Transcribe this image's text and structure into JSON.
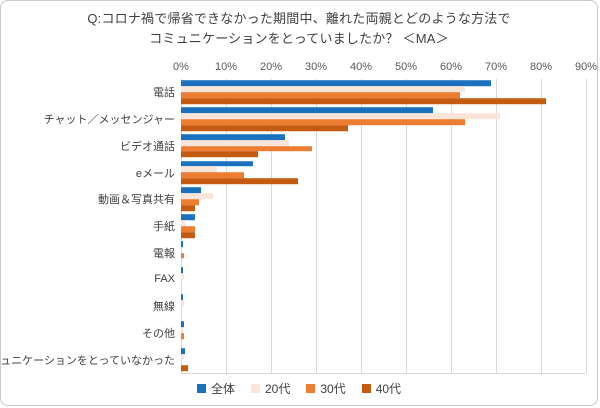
{
  "title": {
    "line1": "Q:コロナ禍で帰省できなかった期間中、離れた両親とどのような方法で",
    "line2": "コミュニケーションをとっていましたか？ ＜MA＞"
  },
  "chart_data": {
    "type": "bar",
    "orientation": "horizontal",
    "title": "Q:コロナ禍で帰省できなかった期間中、離れた両親とどのような方法でコミュニケーションをとっていましたか？＜MA＞",
    "xlim": [
      0,
      90
    ],
    "x_tick_labels": [
      "0%",
      "10%",
      "20%",
      "30%",
      "40%",
      "50%",
      "60%",
      "70%",
      "80%",
      "90%"
    ],
    "grid": true,
    "legend_position": "bottom",
    "categories": [
      "電話",
      "チャット／メッセンジャー",
      "ビデオ通話",
      "eメール",
      "動画＆写真共有",
      "手紙",
      "電報",
      "FAX",
      "無線",
      "その他",
      "コミュニケーションをとっていなかった"
    ],
    "series": [
      {
        "name": "全体",
        "color": "#1b71be",
        "values": [
          69,
          56,
          23,
          16,
          4.5,
          3,
          0.4,
          0.4,
          0.4,
          0.6,
          1.0
        ]
      },
      {
        "name": "20代",
        "color": "#fbe5d8",
        "values": [
          63,
          71,
          24,
          8,
          7,
          1,
          0,
          0.6,
          0.6,
          0.4,
          0.6
        ]
      },
      {
        "name": "30代",
        "color": "#ed7d31",
        "values": [
          62,
          63,
          29,
          14,
          4,
          3,
          0.6,
          0,
          0,
          0.6,
          0
        ]
      },
      {
        "name": "40代",
        "color": "#c55a11",
        "values": [
          81,
          37,
          17,
          26,
          3,
          3,
          0,
          0,
          0,
          0,
          1.5
        ]
      }
    ]
  }
}
